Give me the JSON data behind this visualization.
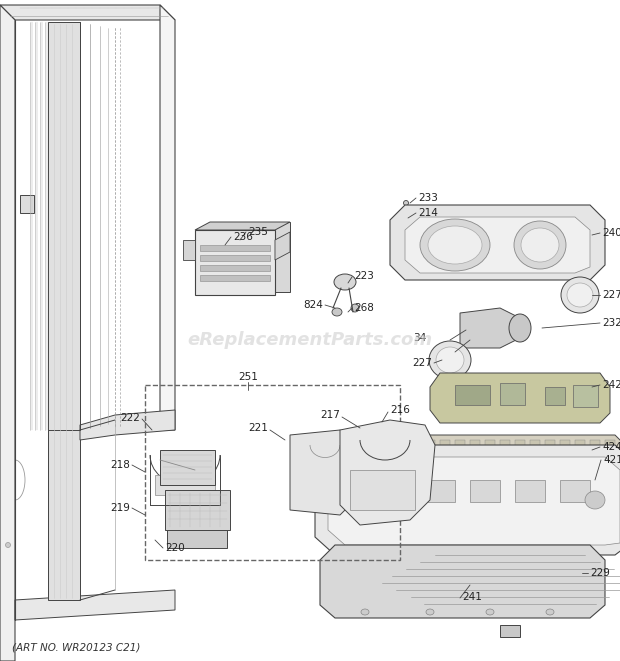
{
  "footer": "(ART NO. WR20123 C21)",
  "bg_color": "#ffffff",
  "line_color": "#444444",
  "text_color": "#222222",
  "watermark": "eReplacementParts.com",
  "watermark_color": "#d0d0d0",
  "fig_width": 6.2,
  "fig_height": 6.61,
  "dpi": 100
}
